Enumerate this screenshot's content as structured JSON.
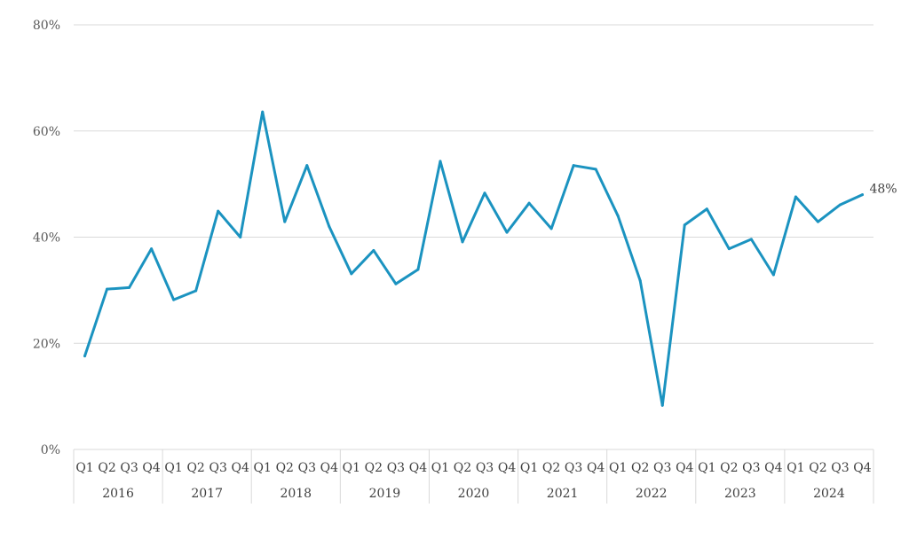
{
  "chart_data": {
    "type": "line",
    "title": "",
    "xlabel": "",
    "ylabel": "",
    "ylim": [
      0,
      0.8
    ],
    "y_ticks": [
      "0%",
      "20%",
      "40%",
      "60%",
      "80%"
    ],
    "y_tick_values": [
      0,
      0.2,
      0.4,
      0.6,
      0.8
    ],
    "grid": true,
    "legend": "none",
    "years": [
      "2016",
      "2017",
      "2018",
      "2019",
      "2020",
      "2021",
      "2022",
      "2023",
      "2024"
    ],
    "quarters": [
      "Q1",
      "Q2",
      "Q3",
      "Q4"
    ],
    "series": [
      {
        "color": "#1b93c0",
        "values": [
          0.176,
          0.302,
          0.305,
          0.378,
          0.282,
          0.299,
          0.449,
          0.4,
          0.636,
          0.429,
          0.535,
          0.42,
          0.331,
          0.375,
          0.312,
          0.339,
          0.543,
          0.391,
          0.483,
          0.409,
          0.464,
          0.416,
          0.535,
          0.528,
          0.44,
          0.318,
          0.083,
          0.423,
          0.453,
          0.378,
          0.396,
          0.329,
          0.476,
          0.429,
          0.461,
          0.48
        ]
      }
    ],
    "end_label": "48%"
  }
}
